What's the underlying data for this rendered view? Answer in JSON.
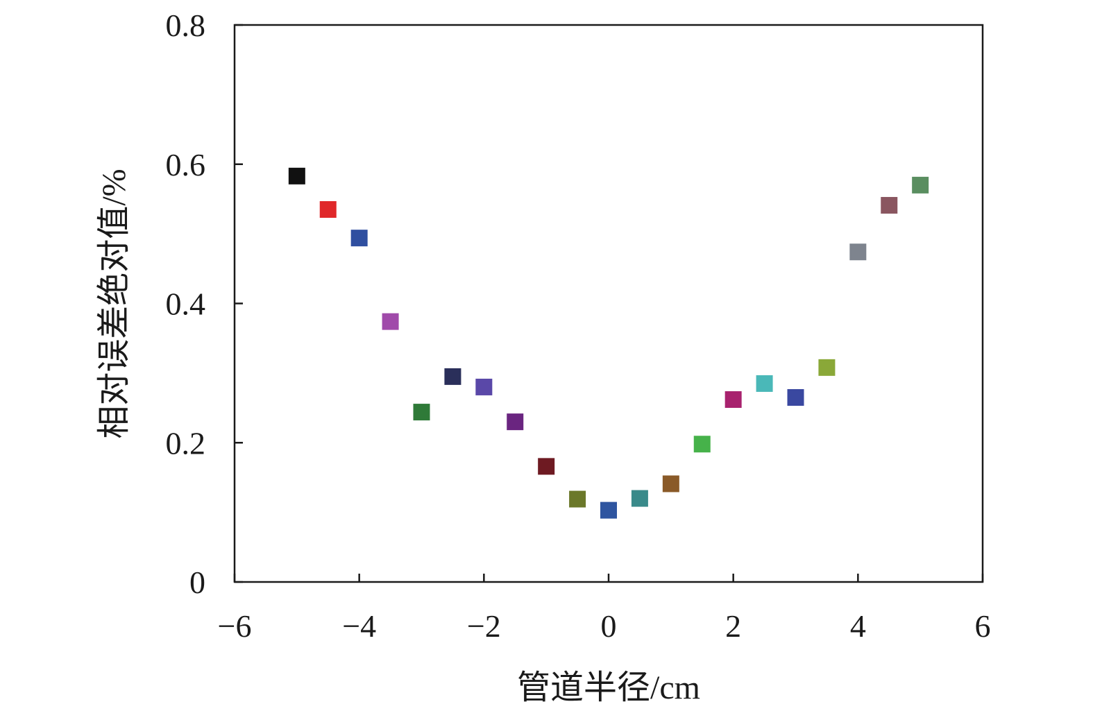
{
  "chart_data": {
    "type": "scatter",
    "title": "",
    "xlabel": "管道半径/cm",
    "ylabel": "相对误差绝对值/%",
    "xlim": [
      -6,
      6
    ],
    "ylim": [
      0,
      0.8
    ],
    "x_ticks": [
      -6,
      -4,
      -2,
      0,
      2,
      4,
      6
    ],
    "x_tick_labels": [
      "−6",
      "−4",
      "−2",
      "0",
      "2",
      "4",
      "6"
    ],
    "y_ticks": [
      0,
      0.2,
      0.4,
      0.6,
      0.8
    ],
    "y_tick_labels": [
      "0",
      "0.2",
      "0.4",
      "0.6",
      "0.8"
    ],
    "grid": false,
    "legend": "none",
    "marker": "square",
    "points": [
      {
        "x": -5.0,
        "y": 0.583,
        "color": "#111111"
      },
      {
        "x": -4.5,
        "y": 0.535,
        "color": "#e0282a"
      },
      {
        "x": -4.0,
        "y": 0.494,
        "color": "#2f4fa0"
      },
      {
        "x": -3.5,
        "y": 0.374,
        "color": "#a04aaa"
      },
      {
        "x": -3.0,
        "y": 0.244,
        "color": "#2f7a38"
      },
      {
        "x": -2.5,
        "y": 0.295,
        "color": "#2a2f5a"
      },
      {
        "x": -2.0,
        "y": 0.28,
        "color": "#5a48a8"
      },
      {
        "x": -1.5,
        "y": 0.23,
        "color": "#6a2580"
      },
      {
        "x": -1.0,
        "y": 0.166,
        "color": "#6e1a22"
      },
      {
        "x": -0.5,
        "y": 0.119,
        "color": "#6b782a"
      },
      {
        "x": 0.0,
        "y": 0.103,
        "color": "#2f55a0"
      },
      {
        "x": 0.5,
        "y": 0.12,
        "color": "#3a8a8a"
      },
      {
        "x": 1.0,
        "y": 0.141,
        "color": "#8a5a28"
      },
      {
        "x": 1.5,
        "y": 0.198,
        "color": "#46b24a"
      },
      {
        "x": 2.0,
        "y": 0.262,
        "color": "#a8226e"
      },
      {
        "x": 2.5,
        "y": 0.285,
        "color": "#4ab8b8"
      },
      {
        "x": 3.0,
        "y": 0.265,
        "color": "#3a48a0"
      },
      {
        "x": 3.5,
        "y": 0.308,
        "color": "#8aa838"
      },
      {
        "x": 4.0,
        "y": 0.474,
        "color": "#7e848e"
      },
      {
        "x": 4.5,
        "y": 0.541,
        "color": "#8a5660"
      },
      {
        "x": 5.0,
        "y": 0.57,
        "color": "#5a8e60"
      }
    ]
  }
}
